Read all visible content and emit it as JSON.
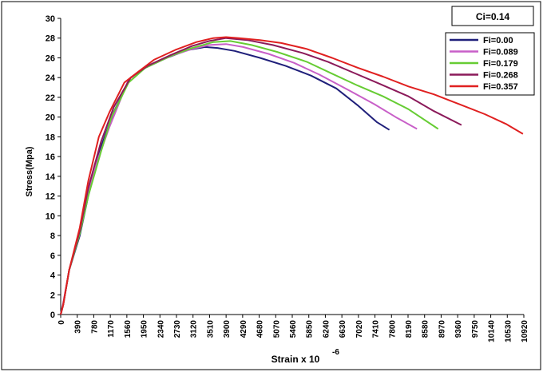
{
  "chart_data": {
    "type": "line",
    "xlabel": "Strain x 10",
    "xlabel_exponent": "-6",
    "ylabel": "Stress(Mpa)",
    "xlim": [
      0,
      10920
    ],
    "ylim": [
      0,
      30
    ],
    "x_ticks": [
      "0",
      "390",
      "780",
      "1170",
      "1560",
      "1950",
      "2340",
      "2730",
      "3120",
      "3510",
      "3900",
      "4290",
      "4680",
      "5070",
      "5460",
      "5850",
      "6240",
      "6630",
      "7020",
      "7410",
      "7800",
      "8190",
      "8580",
      "8970",
      "9360",
      "9750",
      "10140",
      "10530",
      "10920"
    ],
    "y_ticks": [
      "0",
      "2",
      "4",
      "6",
      "8",
      "10",
      "12",
      "14",
      "16",
      "18",
      "20",
      "22",
      "24",
      "26",
      "28",
      "30"
    ],
    "grid": false,
    "legend_position": "top-right",
    "annotation": "Ci=0.14",
    "series": [
      {
        "name": "Fi=0.00",
        "color": "#1f1f7a",
        "points": [
          [
            0,
            0
          ],
          [
            60,
            1
          ],
          [
            200,
            4.5
          ],
          [
            450,
            8
          ],
          [
            650,
            12
          ],
          [
            950,
            17
          ],
          [
            1250,
            20.5
          ],
          [
            1650,
            24
          ],
          [
            2000,
            25
          ],
          [
            2500,
            26
          ],
          [
            3000,
            26.8
          ],
          [
            3400,
            27.1
          ],
          [
            3700,
            27
          ],
          [
            4100,
            26.7
          ],
          [
            4700,
            26
          ],
          [
            5300,
            25.2
          ],
          [
            5900,
            24.2
          ],
          [
            6500,
            22.9
          ],
          [
            7000,
            21.2
          ],
          [
            7450,
            19.5
          ],
          [
            7750,
            18.7
          ]
        ]
      },
      {
        "name": "Fi=0.089",
        "color": "#c85fc8",
        "points": [
          [
            0,
            0
          ],
          [
            60,
            1.2
          ],
          [
            200,
            4.5
          ],
          [
            450,
            8.5
          ],
          [
            650,
            12.5
          ],
          [
            900,
            16
          ],
          [
            1150,
            19
          ],
          [
            1600,
            23.8
          ],
          [
            2000,
            25
          ],
          [
            2600,
            26.2
          ],
          [
            3100,
            26.9
          ],
          [
            3500,
            27.3
          ],
          [
            3900,
            27.4
          ],
          [
            4300,
            27.1
          ],
          [
            4900,
            26.4
          ],
          [
            5500,
            25.5
          ],
          [
            6100,
            24.3
          ],
          [
            6800,
            22.7
          ],
          [
            7400,
            21.3
          ],
          [
            7900,
            20
          ],
          [
            8400,
            18.8
          ]
        ]
      },
      {
        "name": "Fi=0.179",
        "color": "#66cc33",
        "points": [
          [
            0,
            0
          ],
          [
            60,
            1
          ],
          [
            200,
            4.5
          ],
          [
            450,
            8.2
          ],
          [
            650,
            12
          ],
          [
            950,
            16.5
          ],
          [
            1200,
            20
          ],
          [
            1600,
            23.5
          ],
          [
            2000,
            25
          ],
          [
            2600,
            26.2
          ],
          [
            3100,
            27
          ],
          [
            3600,
            27.6
          ],
          [
            4000,
            27.7
          ],
          [
            4500,
            27.3
          ],
          [
            5100,
            26.6
          ],
          [
            5800,
            25.6
          ],
          [
            6400,
            24.4
          ],
          [
            7000,
            23.2
          ],
          [
            7600,
            22.1
          ],
          [
            8200,
            20.8
          ],
          [
            8900,
            18.8
          ]
        ]
      },
      {
        "name": "Fi=0.268",
        "color": "#8b1a5a",
        "points": [
          [
            0,
            0
          ],
          [
            60,
            1
          ],
          [
            200,
            4.5
          ],
          [
            450,
            8.5
          ],
          [
            650,
            12.8
          ],
          [
            950,
            17.5
          ],
          [
            1250,
            21
          ],
          [
            1650,
            24
          ],
          [
            2050,
            25.2
          ],
          [
            2600,
            26.3
          ],
          [
            3100,
            27.2
          ],
          [
            3500,
            27.7
          ],
          [
            3900,
            28
          ],
          [
            4400,
            27.8
          ],
          [
            5000,
            27.3
          ],
          [
            5700,
            26.5
          ],
          [
            6300,
            25.6
          ],
          [
            6900,
            24.5
          ],
          [
            7500,
            23.4
          ],
          [
            8200,
            22.1
          ],
          [
            8800,
            20.6
          ],
          [
            9450,
            19.2
          ]
        ]
      },
      {
        "name": "Fi=0.357",
        "color": "#e02020",
        "points": [
          [
            0,
            0
          ],
          [
            60,
            1
          ],
          [
            200,
            4.5
          ],
          [
            450,
            8.8
          ],
          [
            650,
            13.5
          ],
          [
            900,
            18
          ],
          [
            1150,
            20.5
          ],
          [
            1500,
            23.5
          ],
          [
            1800,
            24.5
          ],
          [
            2200,
            25.8
          ],
          [
            2700,
            26.8
          ],
          [
            3200,
            27.6
          ],
          [
            3600,
            28
          ],
          [
            3900,
            28.1
          ],
          [
            4200,
            28
          ],
          [
            4700,
            27.8
          ],
          [
            5200,
            27.5
          ],
          [
            5800,
            26.9
          ],
          [
            6400,
            26
          ],
          [
            7000,
            25
          ],
          [
            7600,
            24.1
          ],
          [
            8200,
            23.1
          ],
          [
            8800,
            22.3
          ],
          [
            9400,
            21.3
          ],
          [
            10000,
            20.3
          ],
          [
            10500,
            19.3
          ],
          [
            10900,
            18.3
          ]
        ]
      }
    ]
  }
}
